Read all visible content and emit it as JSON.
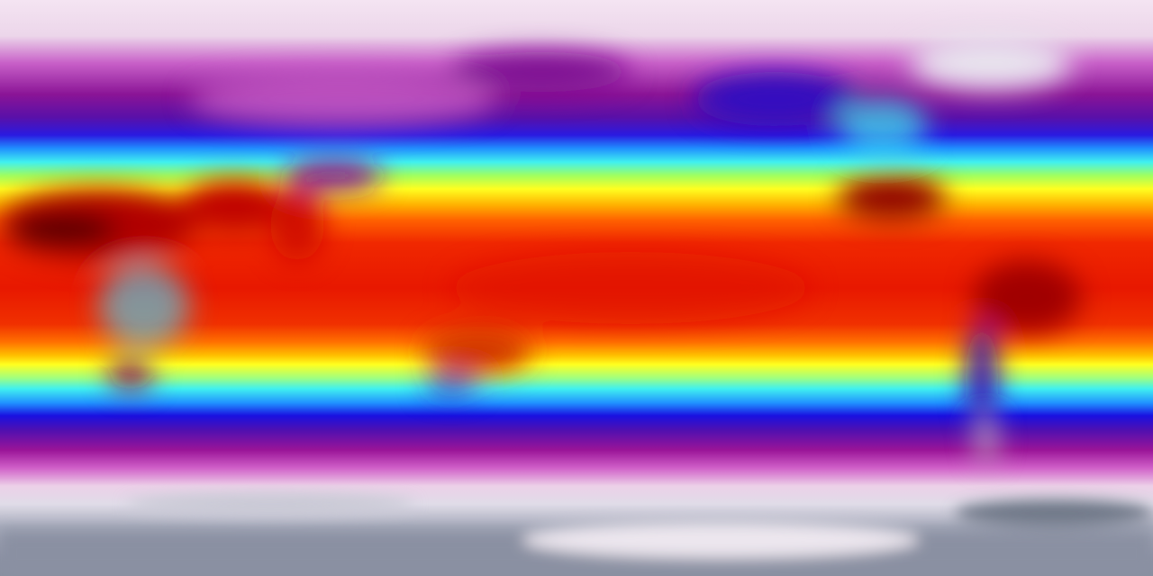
{
  "map": {
    "projection": "equirectangular",
    "colormap": [
      "#f4e4f2",
      "#8a1496",
      "#2a1ae0",
      "#40f0f0",
      "#ffff20",
      "#ff6000",
      "#e81800",
      "#600000"
    ]
  }
}
